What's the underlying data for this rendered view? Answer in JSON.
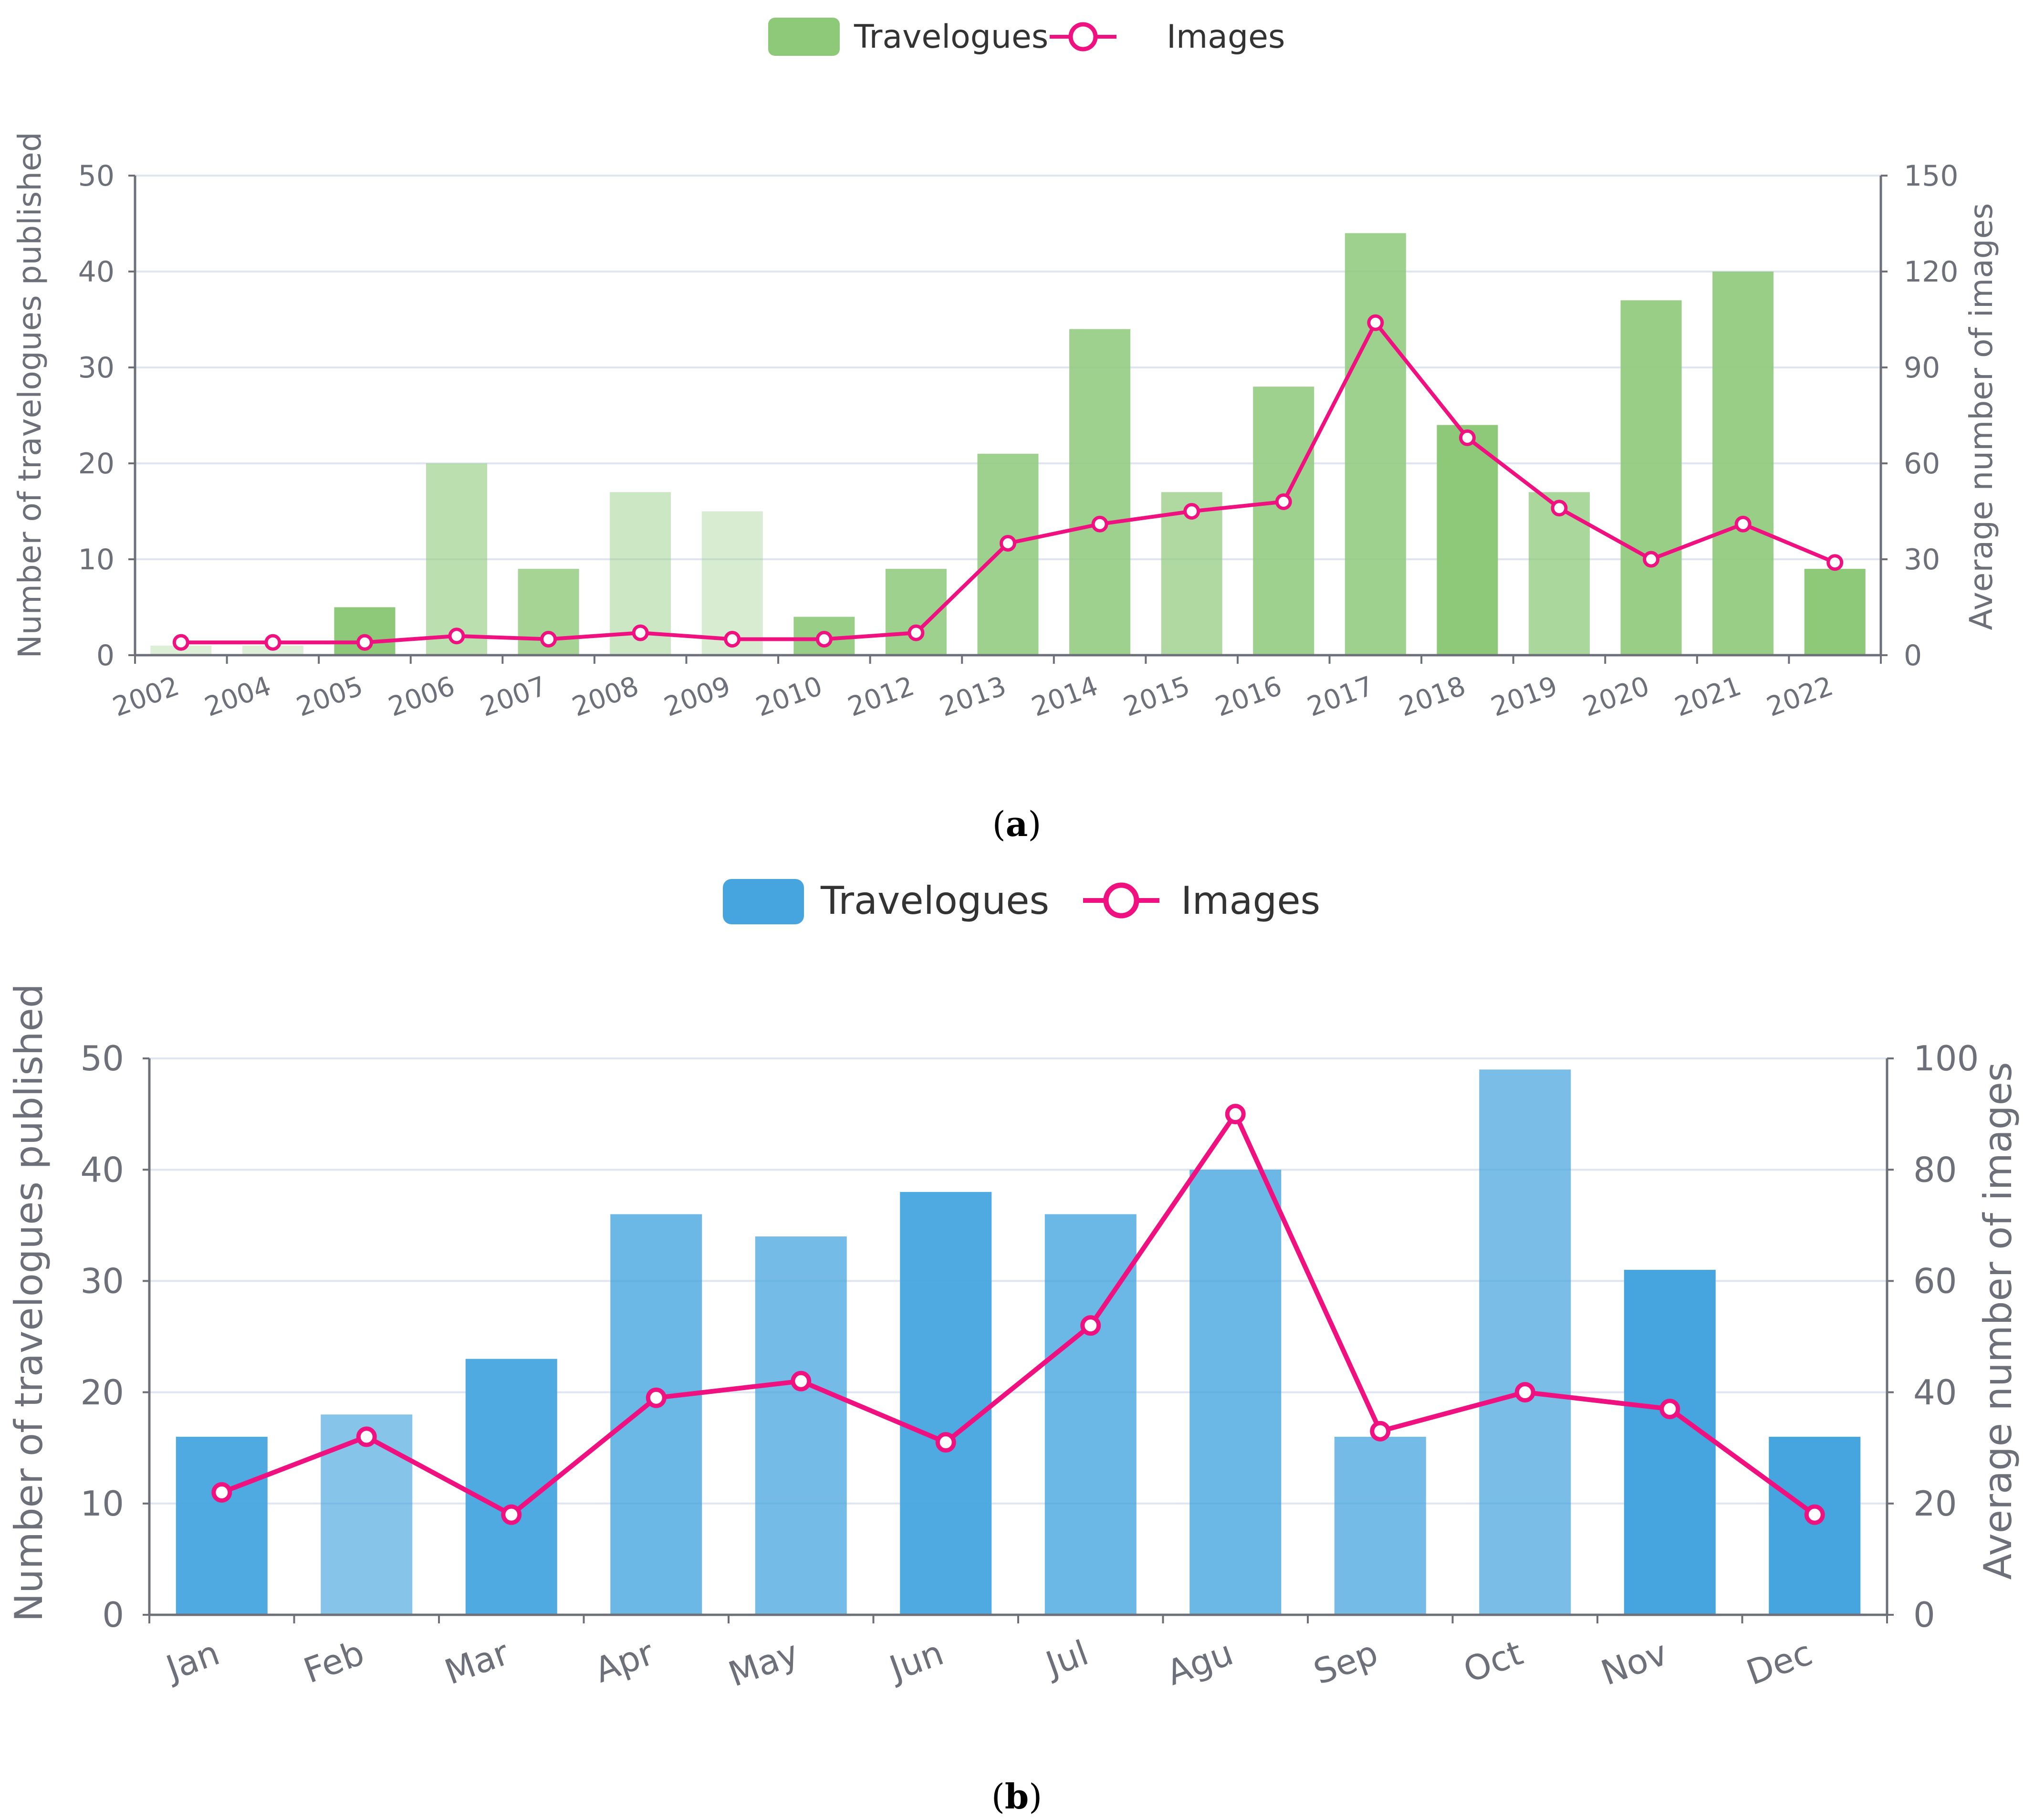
{
  "chart_data": [
    {
      "type": "bar",
      "panel_label": "a",
      "legend": {
        "bars": "Travelogues",
        "line": "Images"
      },
      "colors": {
        "bars": [
          "#d5ebcc",
          "#c5e5b8",
          "#b2dca2",
          "#a5d693",
          "#98d085",
          "#8ec97a"
        ],
        "line": "#ef117f",
        "axis": "#6e7079",
        "grid": "#e0e6f1"
      },
      "categories": [
        "2002",
        "2004",
        "2005",
        "2006",
        "2007",
        "2008",
        "2009",
        "2010",
        "2012",
        "2013",
        "2014",
        "2015",
        "2016",
        "2017",
        "2018",
        "2019",
        "2020",
        "2021",
        "2022"
      ],
      "bar_opacity": [
        0.3,
        0.3,
        1,
        0.6,
        0.8,
        0.45,
        0.35,
        0.9,
        0.85,
        0.85,
        0.85,
        0.7,
        0.85,
        0.85,
        1,
        0.75,
        0.9,
        0.9,
        1
      ],
      "series": [
        {
          "name": "Travelogues",
          "axis": "left",
          "values": [
            1,
            1,
            5,
            20,
            9,
            17,
            15,
            4,
            9,
            21,
            34,
            17,
            28,
            44,
            24,
            17,
            37,
            40,
            9
          ]
        },
        {
          "name": "Images",
          "axis": "right",
          "values": [
            4,
            4,
            4,
            6,
            5,
            7,
            5,
            5,
            7,
            35,
            41,
            45,
            48,
            104,
            68,
            46,
            30,
            41,
            29
          ]
        }
      ],
      "ylabel": "Number of travelogues published",
      "ylim": [
        0,
        50
      ],
      "yticks": [
        "0",
        "10",
        "20",
        "30",
        "40",
        "50"
      ],
      "y2label": "Average number of images",
      "y2lim": [
        0,
        150
      ],
      "y2ticks": [
        "0",
        "30",
        "60",
        "90",
        "120",
        "150"
      ]
    },
    {
      "type": "bar",
      "panel_label": "b",
      "legend": {
        "bars": "Travelogues",
        "line": "Images"
      },
      "colors": {
        "bars": [
          "#83c3ea",
          "#6db8e7",
          "#62b3e5",
          "#52abe2",
          "#46a5df"
        ],
        "line": "#ef117f",
        "axis": "#6e7079",
        "grid": "#e0e6f1"
      },
      "categories": [
        "Jan",
        "Feb",
        "Mar",
        "Apr",
        "May",
        "Jun",
        "Jul",
        "Agu",
        "Sep",
        "Oct",
        "Nov",
        "Dec"
      ],
      "bar_opacity": [
        0.95,
        0.65,
        0.95,
        0.8,
        0.75,
        0.95,
        0.8,
        0.8,
        0.75,
        0.72,
        1,
        1
      ],
      "series": [
        {
          "name": "Travelogues",
          "axis": "left",
          "values": [
            16,
            18,
            23,
            36,
            34,
            38,
            36,
            40,
            16,
            49,
            31,
            16
          ]
        },
        {
          "name": "Images",
          "axis": "right",
          "values": [
            22,
            32,
            18,
            39,
            42,
            31,
            52,
            90,
            33,
            40,
            37,
            18
          ]
        }
      ],
      "ylabel": "Number of travelogues published",
      "ylim": [
        0,
        50
      ],
      "yticks": [
        "0",
        "10",
        "20",
        "30",
        "40",
        "50"
      ],
      "y2label": "Average number of images",
      "y2lim": [
        0,
        100
      ],
      "y2ticks": [
        "0",
        "20",
        "40",
        "60",
        "80",
        "100"
      ]
    }
  ]
}
